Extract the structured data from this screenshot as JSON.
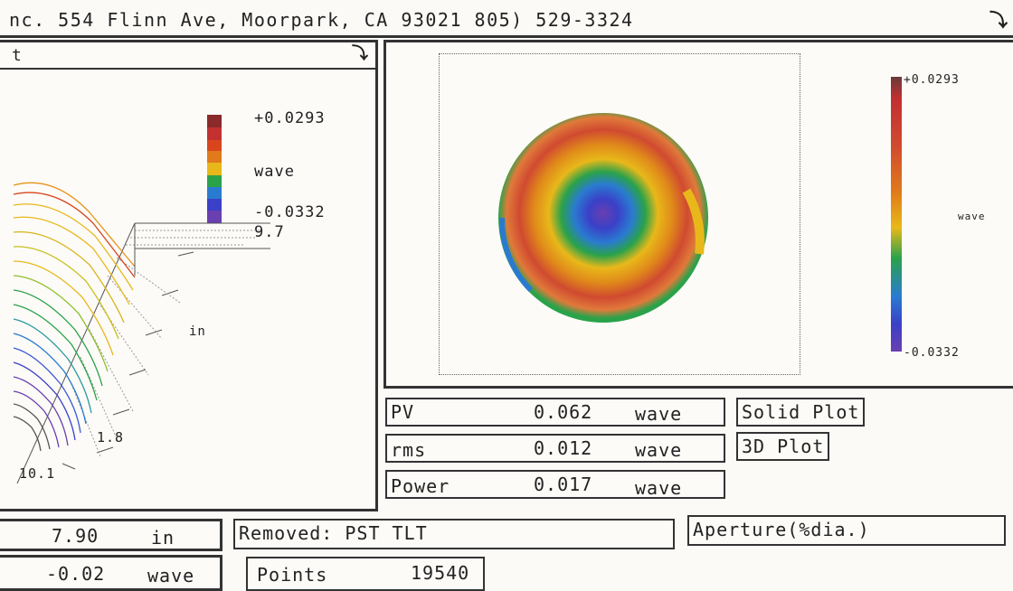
{
  "header": {
    "text": "nc.  554 Flinn Ave,  Moorpark, CA  93021 805) 529-3324"
  },
  "left_panel": {
    "title": "t",
    "scale_max": "+0.0293",
    "scale_unit": "wave",
    "scale_min": "-0.0332",
    "z_value": "9.7",
    "axis_unit": "in",
    "axis_value_a": "1.8",
    "axis_value_b": "10.1",
    "scale_colors": [
      "#8b2a2a",
      "#c23030",
      "#d9461e",
      "#e07a1a",
      "#e8b81a",
      "#2aa24a",
      "#2a7bd0",
      "#3a40c8",
      "#6a3fb0"
    ]
  },
  "right_panel": {
    "scale_max": "+0.0293",
    "scale_unit": "wave",
    "scale_min": "-0.0332"
  },
  "stats": [
    {
      "label": "PV",
      "value": "0.062",
      "unit": "wave"
    },
    {
      "label": "rms",
      "value": "0.012",
      "unit": "wave"
    },
    {
      "label": "Power",
      "value": "0.017",
      "unit": "wave"
    }
  ],
  "buttons": {
    "solid_plot": "Solid Plot",
    "plot_3d": "3D Plot"
  },
  "bottom": {
    "diameter_value": "7.90",
    "diameter_unit": "in",
    "removed": "Removed: PST TLT",
    "aperture": "Aperture(%dia.)",
    "offset_value": "-0.02",
    "offset_unit": "wave",
    "points_label": "Points",
    "points_value": "19540"
  }
}
